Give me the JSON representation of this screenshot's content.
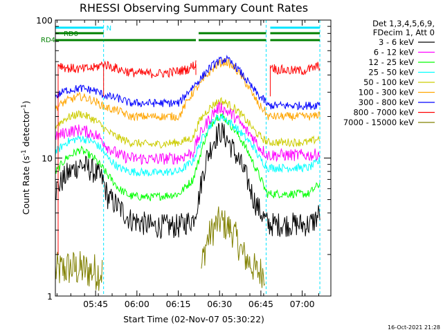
{
  "title": "RHESSI Observing Summary Count Rates",
  "xlabel": "Start Time (02-Nov-07 05:30:22)",
  "ylabel_main": "Count Rate (s",
  "ylabel_sup": "-1",
  "ylabel_tail": " detector",
  "ylabel_end": ")",
  "timestamp": "16-Oct-2021 21:28",
  "legend": {
    "header_line1": "Det 1,3,4,5,6,9,",
    "header_line2": "FDecim 1, Att 0"
  },
  "flags": [
    {
      "label": "N",
      "color": "#00e5ff"
    },
    {
      "label": "RD0",
      "color": "#008000"
    },
    {
      "label": "RD4",
      "color": "#008000"
    }
  ],
  "chart_data": {
    "type": "line",
    "x_unit": "minutes since 05:30:22",
    "xlim": [
      0,
      100
    ],
    "ylim": [
      1,
      100
    ],
    "y_scale": "log",
    "x_ticks": [
      {
        "label": "05:45",
        "x": 14.6
      },
      {
        "label": "06:00",
        "x": 29.6
      },
      {
        "label": "06:15",
        "x": 44.6
      },
      {
        "label": "06:30",
        "x": 59.6
      },
      {
        "label": "06:45",
        "x": 74.6
      },
      {
        "label": "07:00",
        "x": 89.6
      }
    ],
    "y_ticks": [
      {
        "label": "1",
        "y": 1
      },
      {
        "label": "10",
        "y": 10
      },
      {
        "label": "100",
        "y": 100
      }
    ],
    "night_boundaries": [
      0,
      17.5,
      76.5,
      96
    ],
    "attenuator_boundary": 51,
    "series": [
      {
        "name": "3 - 6 keV",
        "color": "#000000",
        "x": [
          0,
          4,
          9,
          14,
          17,
          19,
          23,
          27,
          35,
          45,
          50,
          52,
          55,
          58,
          60,
          62,
          65,
          69,
          72,
          74,
          76,
          77,
          80,
          86,
          92,
          94,
          96
        ],
        "y": [
          5.8,
          7.5,
          9.0,
          8.0,
          7.0,
          5.2,
          4.4,
          3.6,
          3.2,
          3.2,
          3.6,
          5.0,
          10,
          14,
          15.5,
          14,
          11,
          7.5,
          5,
          4.2,
          3.6,
          3.3,
          3.3,
          3.3,
          3.3,
          3.5,
          4.0
        ]
      },
      {
        "name": "6 - 12 keV",
        "color": "#ff00ff",
        "x": [
          0,
          4,
          9,
          14,
          17,
          19,
          23,
          27,
          35,
          45,
          50,
          52,
          55,
          58,
          60,
          62,
          65,
          69,
          72,
          74,
          76,
          77,
          80,
          86,
          92,
          94,
          96
        ],
        "y": [
          14,
          15.5,
          16,
          15,
          13.5,
          12,
          10.5,
          10,
          9.8,
          10,
          11,
          14,
          18,
          22,
          23.5,
          22,
          20,
          16,
          14,
          12,
          11,
          10.5,
          10.5,
          10.5,
          10.5,
          10.5,
          11
        ]
      },
      {
        "name": "12 - 25 keV",
        "color": "#00ff00",
        "x": [
          0,
          4,
          9,
          14,
          17,
          19,
          23,
          27,
          35,
          45,
          50,
          52,
          55,
          58,
          60,
          62,
          65,
          69,
          72,
          74,
          76,
          77,
          80,
          86,
          92,
          94,
          96
        ],
        "y": [
          7.8,
          10,
          11.5,
          10,
          8.5,
          7.5,
          6,
          5.3,
          5.2,
          5.5,
          7,
          9.5,
          15,
          19.5,
          20.5,
          19,
          16,
          12,
          9,
          7.5,
          6,
          5.5,
          5.5,
          5.5,
          5.5,
          6,
          6.5
        ]
      },
      {
        "name": "25 - 50 keV",
        "color": "#00ffff",
        "x": [
          0,
          4,
          9,
          14,
          17,
          19,
          23,
          27,
          35,
          45,
          50,
          52,
          55,
          58,
          60,
          62,
          65,
          69,
          72,
          74,
          76,
          77,
          80,
          86,
          92,
          94,
          96
        ],
        "y": [
          11,
          13,
          14,
          13,
          11.5,
          10,
          8.5,
          8,
          7.8,
          8,
          9.5,
          12,
          16,
          19,
          20,
          19,
          17,
          14,
          12,
          10,
          9,
          8.5,
          8.5,
          8.5,
          8.5,
          9,
          9.5
        ]
      },
      {
        "name": "50 - 100 keV",
        "color": "#cccc00",
        "x": [
          0,
          4,
          9,
          14,
          17,
          19,
          23,
          27,
          35,
          45,
          50,
          52,
          55,
          58,
          60,
          62,
          65,
          69,
          72,
          74,
          76,
          77,
          80,
          86,
          92,
          94,
          96
        ],
        "y": [
          17,
          19.5,
          21,
          19,
          17,
          15.5,
          14,
          13,
          12.5,
          13,
          14,
          18,
          22,
          25,
          26,
          25,
          23,
          19,
          16,
          14.5,
          13.5,
          13,
          13,
          13,
          13,
          13.5,
          14
        ]
      },
      {
        "name": "100 - 300 keV",
        "color": "#ffa500",
        "x": [
          0,
          4,
          9,
          14,
          17,
          19,
          23,
          27,
          32,
          38,
          45,
          50,
          53,
          56,
          59,
          62,
          65,
          68,
          71,
          74,
          76,
          77,
          80,
          86,
          92,
          94,
          96
        ],
        "y": [
          23,
          26,
          28,
          26,
          24,
          23,
          22,
          20,
          20,
          20,
          20,
          30,
          35,
          42,
          48,
          50,
          45,
          38,
          30,
          24,
          22,
          20,
          20,
          20,
          20,
          20,
          21
        ]
      },
      {
        "name": "300 - 800 keV",
        "color": "#0000ff",
        "x": [
          0,
          4,
          9,
          14,
          17,
          19,
          23,
          27,
          32,
          38,
          45,
          50,
          53,
          56,
          59,
          62,
          65,
          68,
          71,
          74,
          76,
          77,
          80,
          86,
          92,
          94,
          96
        ],
        "y": [
          28,
          31,
          32,
          31,
          29,
          28,
          27,
          25,
          25,
          25,
          25,
          33,
          38,
          45,
          50,
          52,
          47,
          40,
          33,
          28,
          26,
          24,
          24,
          24,
          24,
          24,
          25
        ]
      },
      {
        "name": "800 - 7000 keV",
        "color": "#ff0000",
        "x": [
          1,
          4,
          9,
          14,
          17.5,
          19,
          23,
          27,
          32,
          38,
          43,
          48,
          51
        ],
        "y": [
          48,
          45,
          44,
          45,
          48,
          47,
          44,
          42,
          41,
          41,
          42,
          44,
          48
        ]
      },
      {
        "name": "7000 - 15000 keV",
        "color": "#808000",
        "x": [
          0,
          5,
          10,
          15,
          17,
          19,
          45,
          50,
          53,
          55,
          58,
          60,
          62,
          64,
          66,
          68,
          71,
          73,
          75,
          76,
          77,
          96
        ],
        "y": [
          1.5,
          1.6,
          1.55,
          1.5,
          1.5,
          0,
          0,
          0,
          1.6,
          2.5,
          3.2,
          3.5,
          3.2,
          3,
          2.5,
          2,
          1.7,
          1.5,
          1.5,
          1.5,
          0,
          0
        ]
      }
    ],
    "red_series_extra": [
      {
        "x": [
          78,
          80,
          85,
          90,
          94,
          96
        ],
        "y": [
          47,
          44,
          43,
          43,
          45,
          47
        ]
      }
    ]
  }
}
